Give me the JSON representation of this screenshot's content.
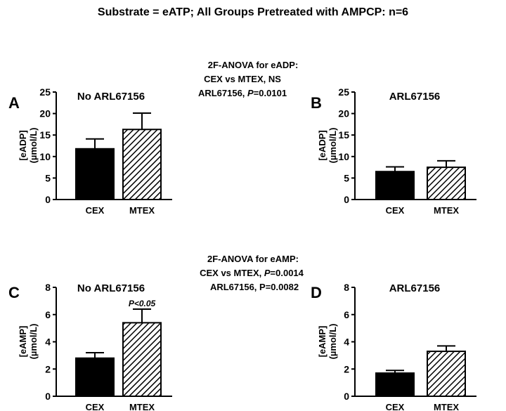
{
  "figure": {
    "title": "Substrate = eATP; All Groups Pretreated with AMPCP: n=6",
    "anova_top": {
      "line1": "2F-ANOVA for eADP:",
      "line2": "CEX vs MTEX, NS",
      "line3_prefix": "ARL67156, ",
      "line3_p": "P",
      "line3_suffix": "=0.0101"
    },
    "anova_bottom": {
      "line1": "2F-ANOVA for eAMP:",
      "line2_prefix": "CEX vs MTEX, ",
      "line2_p": "P",
      "line2_suffix": "=0.0014",
      "line3": "ARL67156, P=0.0082"
    }
  },
  "chart_data": [
    {
      "panel": "A",
      "subtitle": "No ARL67156",
      "type": "bar",
      "ylabel_line1": "[eADP]",
      "ylabel_line2": "(µmol/L)",
      "ylim": [
        0,
        25
      ],
      "yticks": [
        "0",
        "5",
        "10",
        "15",
        "20",
        "25"
      ],
      "categories": [
        "CEX",
        "MTEX"
      ],
      "values": [
        11.8,
        16.3
      ],
      "errors": [
        2.3,
        3.8
      ],
      "annotations": [
        "",
        ""
      ]
    },
    {
      "panel": "B",
      "subtitle": "ARL67156",
      "type": "bar",
      "ylabel_line1": "[eADP]",
      "ylabel_line2": "(µmol/L)",
      "ylim": [
        0,
        25
      ],
      "yticks": [
        "0",
        "5",
        "10",
        "15",
        "20",
        "25"
      ],
      "categories": [
        "CEX",
        "MTEX"
      ],
      "values": [
        6.5,
        7.5
      ],
      "errors": [
        1.1,
        1.5
      ],
      "annotations": [
        "",
        ""
      ]
    },
    {
      "panel": "C",
      "subtitle": "No ARL67156",
      "type": "bar",
      "ylabel_line1": "[eAMP]",
      "ylabel_line2": "(µmol/L)",
      "ylim": [
        0,
        8
      ],
      "yticks": [
        "0",
        "2",
        "4",
        "6",
        "8"
      ],
      "categories": [
        "CEX",
        "MTEX"
      ],
      "values": [
        2.8,
        5.4
      ],
      "errors": [
        0.4,
        1.0
      ],
      "annotations": [
        "",
        "P<0.05"
      ]
    },
    {
      "panel": "D",
      "subtitle": "ARL67156",
      "type": "bar",
      "ylabel_line1": "[eAMP]",
      "ylabel_line2": "(µmol/L)",
      "ylim": [
        0,
        8
      ],
      "yticks": [
        "0",
        "2",
        "4",
        "6",
        "8"
      ],
      "categories": [
        "CEX",
        "MTEX"
      ],
      "values": [
        1.7,
        3.3
      ],
      "errors": [
        0.2,
        0.4
      ],
      "annotations": [
        "",
        ""
      ]
    }
  ]
}
